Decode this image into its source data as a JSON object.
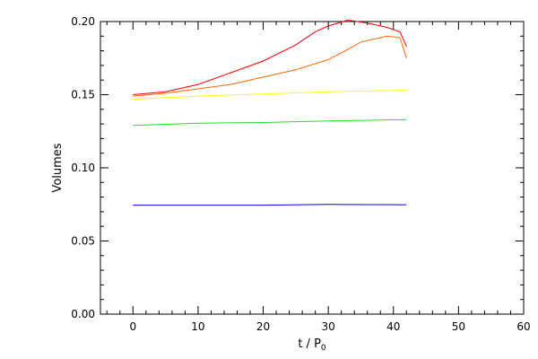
{
  "chart_data": {
    "type": "line",
    "title": "",
    "xlabel": "t / P",
    "xlabel_subscript": "0",
    "ylabel": "Volumes",
    "xlim": [
      -5,
      60
    ],
    "ylim": [
      0.0,
      0.2
    ],
    "x_ticks": [
      0,
      10,
      20,
      30,
      40,
      50,
      60
    ],
    "y_ticks": [
      0.0,
      0.05,
      0.1,
      0.15,
      0.2
    ],
    "x_tick_labels": [
      "0",
      "10",
      "20",
      "30",
      "40",
      "50",
      "60"
    ],
    "y_tick_labels": [
      "0.00",
      "0.05",
      "0.10",
      "0.15",
      "0.20"
    ],
    "grid": false,
    "series": [
      {
        "color": "#0000ff",
        "x": [
          0,
          10,
          20,
          30,
          42
        ],
        "values": [
          0.0745,
          0.0745,
          0.0745,
          0.075,
          0.0748
        ]
      },
      {
        "color": "#22dd22",
        "x": [
          0,
          10,
          20,
          30,
          42
        ],
        "values": [
          0.129,
          0.1305,
          0.131,
          0.132,
          0.133
        ]
      },
      {
        "color": "#ffff00",
        "x": [
          0,
          10,
          20,
          30,
          42
        ],
        "values": [
          0.147,
          0.149,
          0.1505,
          0.152,
          0.153
        ]
      },
      {
        "color": "#ff6600",
        "x": [
          0,
          5,
          10,
          15,
          20,
          25,
          30,
          33,
          35,
          37,
          39,
          41,
          42
        ],
        "values": [
          0.149,
          0.151,
          0.154,
          0.157,
          0.162,
          0.167,
          0.174,
          0.181,
          0.186,
          0.188,
          0.19,
          0.189,
          0.175
        ]
      },
      {
        "color": "#ee0000",
        "x": [
          0,
          5,
          10,
          15,
          20,
          25,
          28,
          30,
          33,
          36,
          39,
          41,
          42
        ],
        "values": [
          0.15,
          0.152,
          0.157,
          0.165,
          0.173,
          0.184,
          0.193,
          0.197,
          0.201,
          0.199,
          0.196,
          0.193,
          0.183
        ]
      }
    ]
  }
}
